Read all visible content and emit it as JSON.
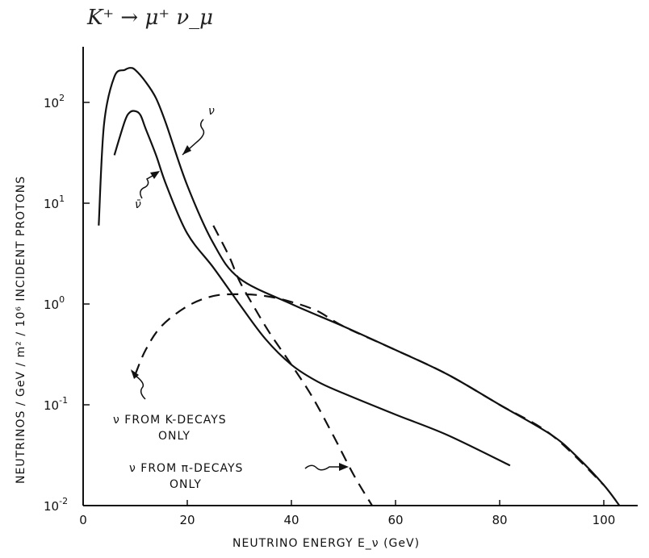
{
  "chart_data": {
    "type": "line",
    "title": "",
    "handwritten_note": "K⁺ → μ⁺ ν_μ",
    "xlabel": "NEUTRINO ENERGY  E_ν (GeV)",
    "ylabel": "NEUTRINOS / GeV / m² / 10⁶ INCIDENT PROTONS",
    "x_scale": "linear",
    "y_scale": "log",
    "xlim": [
      0,
      110
    ],
    "ylim": [
      0.01,
      1000
    ],
    "x_ticks": [
      "0",
      "20",
      "40",
      "60",
      "80",
      "100"
    ],
    "y_ticks": [
      {
        "value": 0.01,
        "base": "10",
        "exp": "-2"
      },
      {
        "value": 0.1,
        "base": "10",
        "exp": "-1"
      },
      {
        "value": 1,
        "base": "10",
        "exp": "0"
      },
      {
        "value": 10,
        "base": "10",
        "exp": "1"
      },
      {
        "value": 100,
        "base": "10",
        "exp": "2"
      }
    ],
    "grid": false,
    "legend": "none",
    "series": [
      {
        "name": "ν",
        "style": "solid",
        "x": [
          3,
          4,
          6,
          8,
          9,
          10,
          12,
          14,
          16,
          20,
          25,
          30,
          40,
          50,
          60,
          70,
          80,
          90,
          95,
          100,
          103
        ],
        "y": [
          6,
          60,
          180,
          210,
          220,
          210,
          160,
          110,
          60,
          15,
          4,
          1.8,
          1.0,
          0.6,
          0.35,
          0.2,
          0.1,
          0.05,
          0.03,
          0.016,
          0.01
        ]
      },
      {
        "name": "ν̄",
        "style": "solid",
        "x": [
          6,
          8,
          9,
          10,
          11,
          12,
          14,
          16,
          20,
          25,
          30,
          35,
          40,
          45,
          50,
          60,
          70,
          82
        ],
        "y": [
          30,
          65,
          80,
          82,
          75,
          55,
          30,
          15,
          5,
          2.3,
          1.0,
          0.45,
          0.25,
          0.17,
          0.13,
          0.08,
          0.05,
          0.025
        ]
      },
      {
        "name": "ν from K-decays only",
        "style": "dashed",
        "x": [
          10,
          12,
          15,
          20,
          25,
          30,
          35,
          40,
          45,
          50,
          60,
          70,
          80,
          90,
          100
        ],
        "y": [
          0.2,
          0.35,
          0.6,
          0.95,
          1.2,
          1.25,
          1.2,
          1.05,
          0.85,
          0.6,
          0.35,
          0.2,
          0.1,
          0.05,
          0.016
        ]
      },
      {
        "name": "ν from π-decays only",
        "style": "dashed",
        "x": [
          25,
          28,
          30,
          33,
          36,
          40,
          44,
          48,
          52,
          55.5
        ],
        "y": [
          6,
          3,
          1.7,
          0.9,
          0.5,
          0.25,
          0.12,
          0.05,
          0.02,
          0.01
        ]
      }
    ],
    "annotations": {
      "nu_label": "ν",
      "nubar_label": "ν̄",
      "k_decays_line1": "ν FROM K-DECAYS",
      "k_decays_line2": "ONLY",
      "pi_decays_line1": "ν FROM π-DECAYS",
      "pi_decays_line2": "ONLY"
    }
  }
}
